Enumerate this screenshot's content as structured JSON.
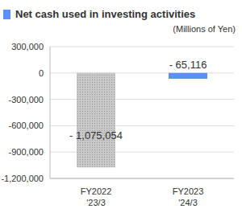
{
  "chart_data": {
    "type": "bar",
    "title": "Net cash used in investing activities",
    "ylabel": "(Millions of Yen)",
    "categories": [
      "FY2022\n'23/3",
      "FY2023\n'24/3"
    ],
    "values": [
      -1075054,
      -65116
    ],
    "value_labels": [
      "- 1,075,054",
      "- 65,116"
    ],
    "colors": [
      "#c8c8c8",
      "#5b8ff9"
    ],
    "ylim": [
      -1200000,
      300000
    ],
    "yticks": [
      {
        "value": 300000,
        "label": "300,000"
      },
      0,
      {
        "value": -300000,
        "label": "-300,000"
      },
      {
        "value": -600000,
        "label": "-600,000"
      },
      {
        "value": -900000,
        "label": "-900,000"
      },
      {
        "value": -1200000,
        "label": "-1,200,000"
      }
    ],
    "grid": true,
    "data_labels": true
  }
}
